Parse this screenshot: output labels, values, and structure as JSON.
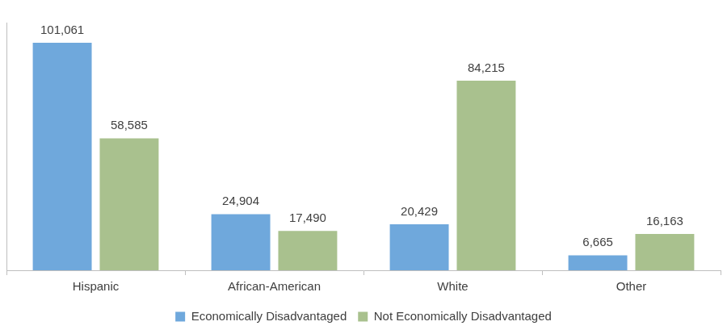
{
  "chart_data": {
    "type": "bar",
    "categories": [
      "Hispanic",
      "African-American",
      "White",
      "Other"
    ],
    "series": [
      {
        "name": "Economically Disadvantaged",
        "color": "#6fa8dc",
        "values": [
          101061,
          24904,
          20429,
          6665
        ],
        "value_labels": [
          "101,061",
          "24,904",
          "20,429",
          "6,665"
        ]
      },
      {
        "name": "Not Economically Disadvantaged",
        "color": "#a9c18e",
        "values": [
          58585,
          17490,
          84215,
          16163
        ],
        "value_labels": [
          "58,585",
          "17,490",
          "84,215",
          "16,163"
        ]
      }
    ],
    "ylim": [
      0,
      110000
    ],
    "grid": false,
    "legend": "bottom",
    "data_labels": true,
    "tick_labels": "x"
  }
}
